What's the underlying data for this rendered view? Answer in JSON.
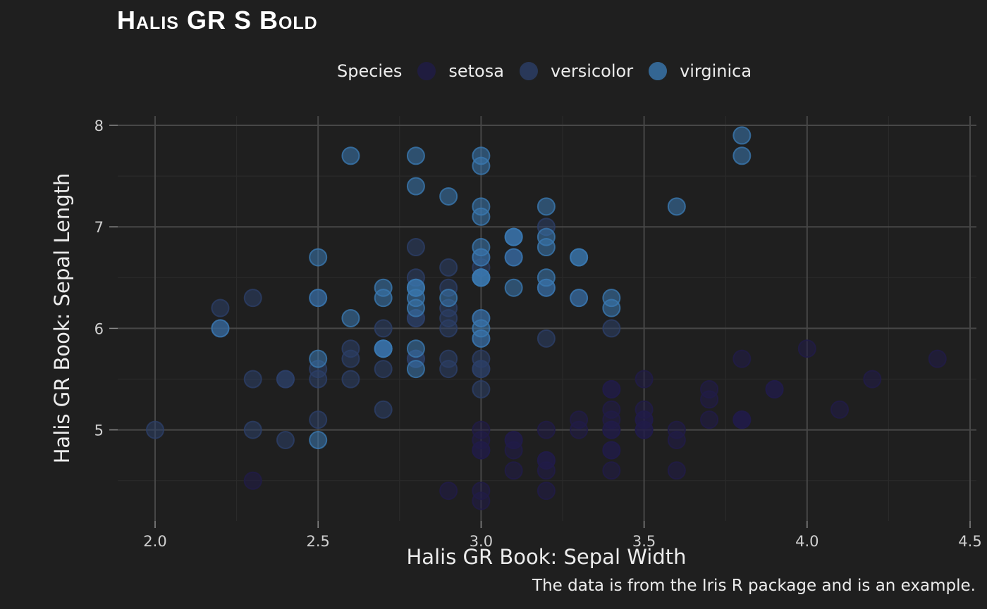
{
  "chart_data": {
    "type": "scatter",
    "title": "Halis GR S Bold",
    "xlabel": "Halis GR Book: Sepal Width",
    "ylabel": "Halis GR Book: Sepal Length",
    "caption": "The data is from the Iris R package and is an example.",
    "legend_title": "Species",
    "legend_position": "top",
    "xlim": [
      2.0,
      4.5
    ],
    "ylim": [
      4.3,
      7.9
    ],
    "x_ticks": [
      2.0,
      2.5,
      3.0,
      3.5,
      4.0,
      4.5
    ],
    "x_tick_labels": [
      "2.0",
      "2.5",
      "3.0",
      "3.5",
      "4.0",
      "4.5"
    ],
    "y_ticks": [
      5,
      6,
      7,
      8
    ],
    "y_tick_labels": [
      "5",
      "6",
      "7",
      "8"
    ],
    "grid": true,
    "series": [
      {
        "name": "setosa",
        "color": "#201c48",
        "points": [
          [
            3.5,
            5.1
          ],
          [
            3.0,
            4.9
          ],
          [
            3.2,
            4.7
          ],
          [
            3.1,
            4.6
          ],
          [
            3.6,
            5.0
          ],
          [
            3.9,
            5.4
          ],
          [
            3.4,
            4.6
          ],
          [
            3.4,
            5.0
          ],
          [
            2.9,
            4.4
          ],
          [
            3.1,
            4.9
          ],
          [
            3.7,
            5.4
          ],
          [
            3.4,
            4.8
          ],
          [
            3.0,
            4.8
          ],
          [
            3.0,
            4.3
          ],
          [
            4.0,
            5.8
          ],
          [
            4.4,
            5.7
          ],
          [
            3.9,
            5.4
          ],
          [
            3.5,
            5.1
          ],
          [
            3.8,
            5.7
          ],
          [
            3.8,
            5.1
          ],
          [
            3.4,
            5.4
          ],
          [
            3.7,
            5.1
          ],
          [
            3.6,
            4.6
          ],
          [
            3.3,
            5.1
          ],
          [
            3.4,
            4.8
          ],
          [
            3.0,
            5.0
          ],
          [
            3.4,
            5.0
          ],
          [
            3.5,
            5.2
          ],
          [
            3.4,
            5.2
          ],
          [
            3.2,
            4.7
          ],
          [
            3.1,
            4.8
          ],
          [
            3.4,
            5.4
          ],
          [
            4.1,
            5.2
          ],
          [
            4.2,
            5.5
          ],
          [
            3.1,
            4.9
          ],
          [
            3.2,
            5.0
          ],
          [
            3.5,
            5.5
          ],
          [
            3.6,
            4.9
          ],
          [
            3.0,
            4.4
          ],
          [
            3.4,
            5.1
          ],
          [
            3.5,
            5.0
          ],
          [
            2.3,
            4.5
          ],
          [
            3.2,
            4.4
          ],
          [
            3.5,
            5.0
          ],
          [
            3.8,
            5.1
          ],
          [
            3.0,
            4.8
          ],
          [
            3.8,
            5.1
          ],
          [
            3.2,
            4.6
          ],
          [
            3.7,
            5.3
          ],
          [
            3.3,
            5.0
          ]
        ]
      },
      {
        "name": "versicolor",
        "color": "#2c3f68",
        "points": [
          [
            3.2,
            7.0
          ],
          [
            3.2,
            6.4
          ],
          [
            3.1,
            6.9
          ],
          [
            2.3,
            5.5
          ],
          [
            2.8,
            6.5
          ],
          [
            2.8,
            5.7
          ],
          [
            3.3,
            6.3
          ],
          [
            2.4,
            4.9
          ],
          [
            2.9,
            6.6
          ],
          [
            2.7,
            5.2
          ],
          [
            2.0,
            5.0
          ],
          [
            3.0,
            5.9
          ],
          [
            2.2,
            6.0
          ],
          [
            2.9,
            6.1
          ],
          [
            2.9,
            5.6
          ],
          [
            3.1,
            6.7
          ],
          [
            3.0,
            5.6
          ],
          [
            2.7,
            5.8
          ],
          [
            2.2,
            6.2
          ],
          [
            2.5,
            5.6
          ],
          [
            3.2,
            5.9
          ],
          [
            2.8,
            6.1
          ],
          [
            2.5,
            6.3
          ],
          [
            2.8,
            6.1
          ],
          [
            2.9,
            6.4
          ],
          [
            3.0,
            6.6
          ],
          [
            2.8,
            6.8
          ],
          [
            3.0,
            6.7
          ],
          [
            2.9,
            6.0
          ],
          [
            2.6,
            5.7
          ],
          [
            2.4,
            5.5
          ],
          [
            2.4,
            5.5
          ],
          [
            2.7,
            5.8
          ],
          [
            2.7,
            6.0
          ],
          [
            3.0,
            5.4
          ],
          [
            3.4,
            6.0
          ],
          [
            3.1,
            6.7
          ],
          [
            2.3,
            6.3
          ],
          [
            3.0,
            5.6
          ],
          [
            2.5,
            5.5
          ],
          [
            2.6,
            5.5
          ],
          [
            3.0,
            6.1
          ],
          [
            2.6,
            5.8
          ],
          [
            2.3,
            5.0
          ],
          [
            2.7,
            5.6
          ],
          [
            3.0,
            5.7
          ],
          [
            2.9,
            5.7
          ],
          [
            2.9,
            6.2
          ],
          [
            2.5,
            5.1
          ],
          [
            2.8,
            5.7
          ]
        ]
      },
      {
        "name": "virginica",
        "color": "#3a78b0",
        "points": [
          [
            3.3,
            6.3
          ],
          [
            2.7,
            5.8
          ],
          [
            3.0,
            7.1
          ],
          [
            2.9,
            6.3
          ],
          [
            3.0,
            6.5
          ],
          [
            3.0,
            7.6
          ],
          [
            2.5,
            4.9
          ],
          [
            2.9,
            7.3
          ],
          [
            2.5,
            6.7
          ],
          [
            3.6,
            7.2
          ],
          [
            3.2,
            6.5
          ],
          [
            2.7,
            6.4
          ],
          [
            3.0,
            6.8
          ],
          [
            2.5,
            5.7
          ],
          [
            2.8,
            5.8
          ],
          [
            3.2,
            6.4
          ],
          [
            3.0,
            6.5
          ],
          [
            3.8,
            7.7
          ],
          [
            2.6,
            7.7
          ],
          [
            2.2,
            6.0
          ],
          [
            3.2,
            6.9
          ],
          [
            2.8,
            5.6
          ],
          [
            2.8,
            7.7
          ],
          [
            2.7,
            6.3
          ],
          [
            3.3,
            6.7
          ],
          [
            3.2,
            7.2
          ],
          [
            2.8,
            6.2
          ],
          [
            3.0,
            6.1
          ],
          [
            2.8,
            6.4
          ],
          [
            3.0,
            7.2
          ],
          [
            2.8,
            7.4
          ],
          [
            3.8,
            7.9
          ],
          [
            2.8,
            6.4
          ],
          [
            2.8,
            6.3
          ],
          [
            2.6,
            6.1
          ],
          [
            3.0,
            7.7
          ],
          [
            3.4,
            6.3
          ],
          [
            3.1,
            6.4
          ],
          [
            3.0,
            6.0
          ],
          [
            3.1,
            6.9
          ],
          [
            3.1,
            6.7
          ],
          [
            3.1,
            6.9
          ],
          [
            2.7,
            5.8
          ],
          [
            3.2,
            6.8
          ],
          [
            3.3,
            6.7
          ],
          [
            3.0,
            6.7
          ],
          [
            2.5,
            6.3
          ],
          [
            3.0,
            6.5
          ],
          [
            3.4,
            6.2
          ],
          [
            3.0,
            5.9
          ]
        ]
      }
    ]
  }
}
